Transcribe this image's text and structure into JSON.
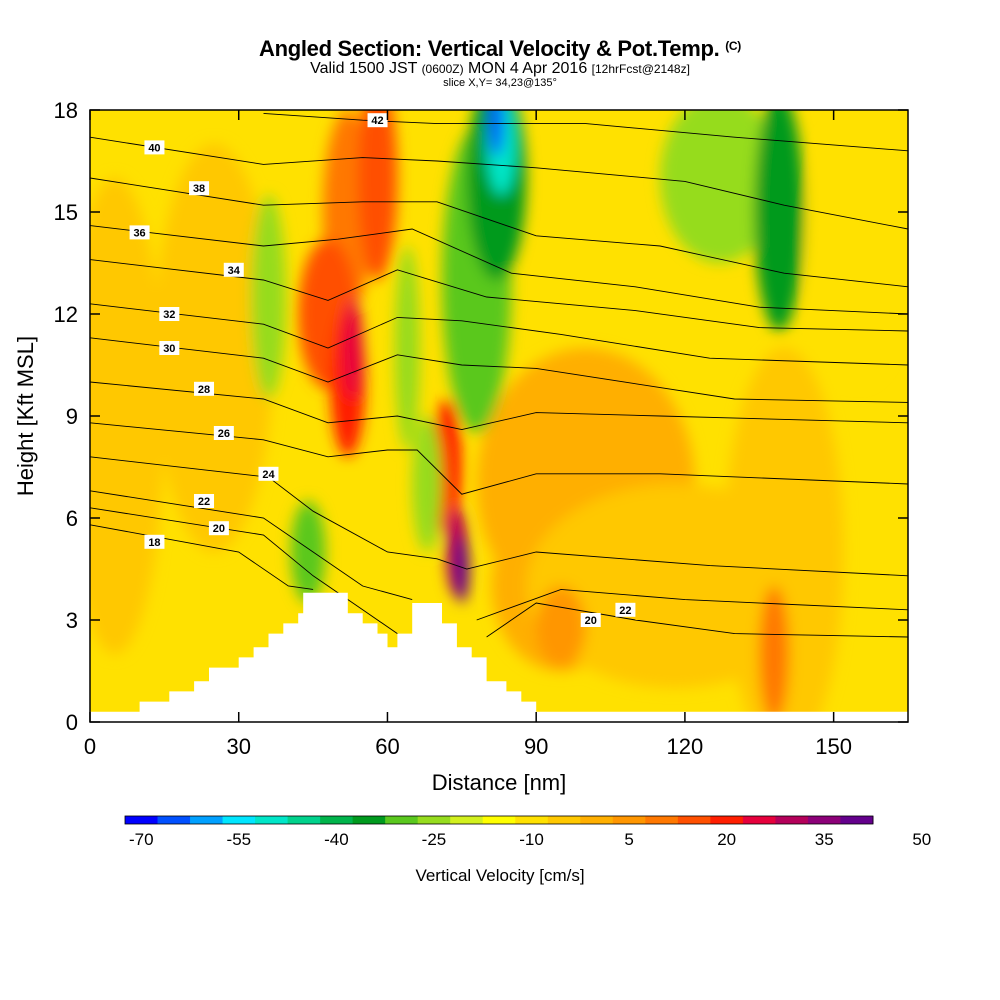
{
  "header": {
    "title": "Angled Section: Vertical Velocity & Pot.Temp.",
    "title_units": "(C)",
    "valid_prefix": "Valid 1500 JST",
    "valid_utc": "(0600Z)",
    "valid_date": "MON 4 Apr 2016",
    "forecast": "[12hrFcst@2148z]",
    "slice": "slice X,Y= 34,23@135°"
  },
  "chart_data": {
    "type": "heatmap",
    "x_axis": {
      "label": "Distance [nm]",
      "range": [
        0,
        165
      ],
      "ticks": [
        0,
        30,
        60,
        90,
        120,
        150
      ]
    },
    "y_axis": {
      "label": "Height [Kft MSL]",
      "range": [
        0,
        18
      ],
      "ticks": [
        0,
        3,
        6,
        9,
        12,
        15,
        18
      ]
    },
    "colorbar": {
      "label": "Vertical Velocity [cm/s]",
      "tick_labels": [
        "-70",
        "-55",
        "-40",
        "-25",
        "-10",
        "5",
        "20",
        "35",
        "50"
      ],
      "colors": [
        "#0000ff",
        "#0050ff",
        "#00a0ff",
        "#00e6ff",
        "#00e6c8",
        "#00d28c",
        "#00b44b",
        "#009a1e",
        "#5ac81e",
        "#96dc1e",
        "#d2f01e",
        "#ffff00",
        "#ffe100",
        "#ffc800",
        "#ffaf00",
        "#ff9600",
        "#ff7800",
        "#ff5000",
        "#ff1e00",
        "#e6003c",
        "#b4005a",
        "#8c0078",
        "#64008c"
      ]
    },
    "terrain_kft": [
      [
        0,
        0.3
      ],
      [
        10,
        0.3
      ],
      [
        10,
        0.6
      ],
      [
        16,
        0.6
      ],
      [
        16,
        0.9
      ],
      [
        21,
        0.9
      ],
      [
        21,
        1.2
      ],
      [
        24,
        1.2
      ],
      [
        24,
        1.6
      ],
      [
        30,
        1.6
      ],
      [
        30,
        1.9
      ],
      [
        33,
        1.9
      ],
      [
        33,
        2.2
      ],
      [
        36,
        2.2
      ],
      [
        36,
        2.6
      ],
      [
        39,
        2.6
      ],
      [
        39,
        2.9
      ],
      [
        42,
        2.9
      ],
      [
        42,
        3.2
      ],
      [
        43,
        3.2
      ],
      [
        43,
        3.8
      ],
      [
        52,
        3.8
      ],
      [
        52,
        3.2
      ],
      [
        55,
        3.2
      ],
      [
        55,
        2.9
      ],
      [
        58,
        2.9
      ],
      [
        58,
        2.6
      ],
      [
        60,
        2.6
      ],
      [
        60,
        2.2
      ],
      [
        62,
        2.2
      ],
      [
        62,
        2.6
      ],
      [
        65,
        2.6
      ],
      [
        65,
        3.5
      ],
      [
        71,
        3.5
      ],
      [
        71,
        2.9
      ],
      [
        74,
        2.9
      ],
      [
        74,
        2.2
      ],
      [
        77,
        2.2
      ],
      [
        77,
        1.9
      ],
      [
        80,
        1.9
      ],
      [
        80,
        1.2
      ],
      [
        84,
        1.2
      ],
      [
        84,
        0.9
      ],
      [
        87,
        0.9
      ],
      [
        87,
        0.6
      ],
      [
        90,
        0.6
      ],
      [
        90,
        0.3
      ],
      [
        165,
        0.3
      ]
    ],
    "contours": [
      {
        "label": "18",
        "label_at": [
          13,
          5.3
        ],
        "points": [
          [
            0,
            5.8
          ],
          [
            30,
            5.0
          ],
          [
            40,
            4.0
          ],
          [
            45,
            3.9
          ]
        ]
      },
      {
        "label": "20",
        "label_at": [
          26,
          5.7
        ],
        "points": [
          [
            0,
            6.3
          ],
          [
            35,
            5.5
          ],
          [
            45,
            4.3
          ],
          [
            55,
            3.3
          ],
          [
            62,
            2.6
          ]
        ]
      },
      {
        "label": "20",
        "label_at": [
          101,
          3.0
        ],
        "points": [
          [
            80,
            2.5
          ],
          [
            90,
            3.5
          ],
          [
            110,
            3.0
          ],
          [
            130,
            2.6
          ],
          [
            165,
            2.5
          ]
        ]
      },
      {
        "label": "22",
        "label_at": [
          23,
          6.5
        ],
        "points": [
          [
            0,
            6.8
          ],
          [
            35,
            6.0
          ],
          [
            45,
            5.0
          ],
          [
            55,
            4.0
          ],
          [
            65,
            3.6
          ]
        ]
      },
      {
        "label": "22",
        "label_at": [
          108,
          3.3
        ],
        "points": [
          [
            78,
            3.0
          ],
          [
            95,
            3.9
          ],
          [
            120,
            3.6
          ],
          [
            165,
            3.3
          ]
        ]
      },
      {
        "label": "24",
        "label_at": [
          36,
          7.3
        ],
        "points": [
          [
            0,
            7.8
          ],
          [
            36,
            7.2
          ],
          [
            45,
            6.2
          ],
          [
            60,
            5.0
          ],
          [
            70,
            4.8
          ],
          [
            76,
            4.5
          ],
          [
            90,
            5.0
          ],
          [
            125,
            4.6
          ],
          [
            165,
            4.3
          ]
        ]
      },
      {
        "label": "26",
        "label_at": [
          27,
          8.5
        ],
        "points": [
          [
            0,
            8.8
          ],
          [
            35,
            8.3
          ],
          [
            48,
            7.8
          ],
          [
            60,
            8.0
          ],
          [
            66,
            8.0
          ],
          [
            75,
            6.7
          ],
          [
            90,
            7.3
          ],
          [
            115,
            7.3
          ],
          [
            165,
            7.0
          ]
        ]
      },
      {
        "label": "28",
        "label_at": [
          23,
          9.8
        ],
        "points": [
          [
            0,
            10.0
          ],
          [
            35,
            9.5
          ],
          [
            48,
            8.8
          ],
          [
            62,
            9.0
          ],
          [
            75,
            8.6
          ],
          [
            90,
            9.1
          ],
          [
            115,
            9.0
          ],
          [
            165,
            8.8
          ]
        ]
      },
      {
        "label": "30",
        "label_at": [
          16,
          11.0
        ],
        "points": [
          [
            0,
            11.3
          ],
          [
            35,
            10.7
          ],
          [
            48,
            10.0
          ],
          [
            62,
            10.8
          ],
          [
            75,
            10.5
          ],
          [
            90,
            10.4
          ],
          [
            130,
            9.5
          ],
          [
            165,
            9.4
          ]
        ]
      },
      {
        "label": "32",
        "label_at": [
          16,
          12.0
        ],
        "points": [
          [
            0,
            12.3
          ],
          [
            35,
            11.7
          ],
          [
            48,
            11.0
          ],
          [
            62,
            11.9
          ],
          [
            75,
            11.8
          ],
          [
            95,
            11.4
          ],
          [
            125,
            10.7
          ],
          [
            165,
            10.5
          ]
        ]
      },
      {
        "label": "34",
        "label_at": [
          29,
          13.3
        ],
        "points": [
          [
            0,
            13.6
          ],
          [
            35,
            13.0
          ],
          [
            48,
            12.4
          ],
          [
            62,
            13.3
          ],
          [
            80,
            12.5
          ],
          [
            110,
            12.1
          ],
          [
            135,
            11.6
          ],
          [
            165,
            11.5
          ]
        ]
      },
      {
        "label": "36",
        "label_at": [
          10,
          14.4
        ],
        "points": [
          [
            0,
            14.6
          ],
          [
            35,
            14.0
          ],
          [
            50,
            14.2
          ],
          [
            65,
            14.5
          ],
          [
            85,
            13.2
          ],
          [
            110,
            12.8
          ],
          [
            135,
            12.2
          ],
          [
            165,
            12.0
          ]
        ]
      },
      {
        "label": "38",
        "label_at": [
          22,
          15.7
        ],
        "points": [
          [
            0,
            16.0
          ],
          [
            35,
            15.2
          ],
          [
            55,
            15.3
          ],
          [
            70,
            15.3
          ],
          [
            90,
            14.3
          ],
          [
            115,
            14.0
          ],
          [
            140,
            13.2
          ],
          [
            165,
            12.8
          ]
        ]
      },
      {
        "label": "40",
        "label_at": [
          13,
          16.9
        ],
        "points": [
          [
            0,
            17.2
          ],
          [
            35,
            16.4
          ],
          [
            55,
            16.6
          ],
          [
            70,
            16.5
          ],
          [
            90,
            16.3
          ],
          [
            120,
            15.9
          ],
          [
            140,
            15.2
          ],
          [
            165,
            14.5
          ]
        ]
      },
      {
        "label": "42",
        "label_at": [
          58,
          17.7
        ],
        "points": [
          [
            35,
            17.9
          ],
          [
            55,
            17.7
          ],
          [
            70,
            17.6
          ],
          [
            100,
            17.6
          ],
          [
            130,
            17.2
          ],
          [
            165,
            16.8
          ]
        ]
      }
    ]
  }
}
